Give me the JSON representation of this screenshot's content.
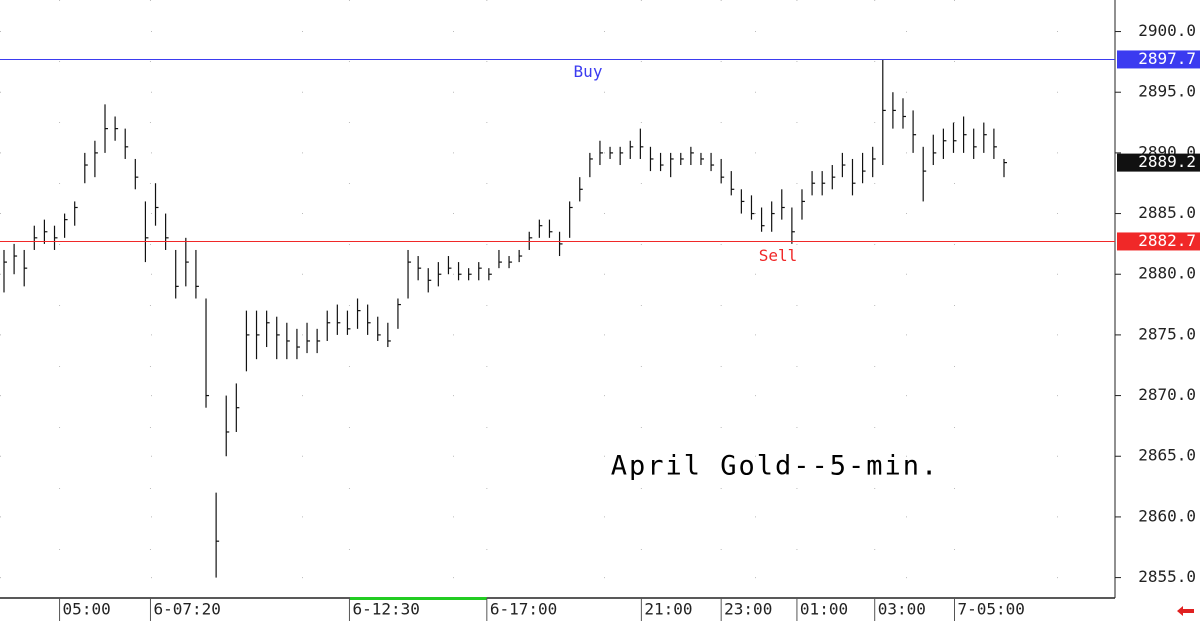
{
  "chart_data": {
    "type": "ohlc",
    "annotation": "April Gold--5-min.",
    "high": [
      2882,
      2882.5,
      2882,
      2884,
      2884.5,
      2884,
      2885,
      2886,
      2890,
      2891,
      2894,
      2893,
      2892,
      2889.5,
      2886,
      2887.5,
      2885,
      2882,
      2883,
      2882,
      2878,
      2862,
      2870,
      2871,
      2877,
      2877,
      2877,
      2876.5,
      2876,
      2875.5,
      2876,
      2875.5,
      2877,
      2877.5,
      2877,
      2878,
      2877.5,
      2876.5,
      2876,
      2878,
      2882,
      2881.5,
      2880.5,
      2881,
      2881.5,
      2881,
      2880.5,
      2881,
      2880.5,
      2882,
      2881.5,
      2882,
      2883.5,
      2884.5,
      2884.5,
      2883.5,
      2886,
      2888,
      2890,
      2891,
      2890.5,
      2890.5,
      2891,
      2892,
      2890.5,
      2890,
      2890,
      2890,
      2890.5,
      2890,
      2890,
      2889.5,
      2888.5,
      2887,
      2886.5,
      2885.5,
      2886,
      2887,
      2885.5,
      2887,
      2888.5,
      2888.5,
      2889,
      2890,
      2889.5,
      2890,
      2890.5,
      2897.7,
      2895,
      2894.5,
      2893.5,
      2890.5,
      2891.5,
      2892,
      2892.5,
      2893,
      2892,
      2892.5,
      2892,
      2889.5
    ],
    "low": [
      2878.5,
      2880,
      2879,
      2882,
      2882.5,
      2882,
      2883,
      2884,
      2887.5,
      2888,
      2890,
      2891,
      2889.5,
      2887,
      2881,
      2884,
      2882,
      2878,
      2879,
      2878,
      2869,
      2855,
      2865,
      2867,
      2872,
      2873,
      2874,
      2873,
      2873,
      2873,
      2873.5,
      2873.5,
      2874.5,
      2875,
      2875,
      2875.5,
      2875,
      2874.5,
      2874,
      2875.5,
      2878,
      2879.5,
      2878.5,
      2879,
      2880,
      2879.5,
      2879.5,
      2879.5,
      2879.5,
      2880.5,
      2880.5,
      2881,
      2882,
      2883,
      2883,
      2881.5,
      2883,
      2886,
      2888,
      2889,
      2889.5,
      2889,
      2889.5,
      2889.5,
      2888.5,
      2888.5,
      2888,
      2889,
      2889,
      2889,
      2888.5,
      2887.5,
      2886.5,
      2885,
      2884.5,
      2883.5,
      2883.5,
      2884.5,
      2882.5,
      2884.5,
      2886.5,
      2886.5,
      2887,
      2888,
      2886.5,
      2887.5,
      2888,
      2889,
      2892,
      2892,
      2890,
      2886,
      2889,
      2889.5,
      2890,
      2890,
      2889.5,
      2890,
      2889.5,
      2888
    ],
    "close": [
      2881,
      2881.5,
      2880.5,
      2883,
      2883.5,
      2883,
      2884.5,
      2885.5,
      2889,
      2890,
      2892,
      2892,
      2890.5,
      2888,
      2883,
      2885.5,
      2883,
      2879,
      2881,
      2879,
      2870,
      2858,
      2867,
      2869,
      2875,
      2875,
      2876,
      2875,
      2874.5,
      2874,
      2874.5,
      2874.5,
      2876,
      2876,
      2875.5,
      2877,
      2876,
      2875,
      2874.5,
      2877.5,
      2881,
      2880.5,
      2879.5,
      2880,
      2880.5,
      2880,
      2880,
      2880.5,
      2880,
      2881,
      2881,
      2881.5,
      2883,
      2884,
      2883.5,
      2882.5,
      2885.5,
      2887,
      2889.5,
      2890,
      2890,
      2890,
      2890.5,
      2890.5,
      2889.5,
      2889,
      2889.5,
      2889.5,
      2890,
      2889.5,
      2889,
      2888,
      2887,
      2886,
      2885,
      2884,
      2885,
      2885.5,
      2883.5,
      2886,
      2887.5,
      2887.5,
      2888,
      2889,
      2887.5,
      2888.5,
      2889.5,
      2893.5,
      2893.5,
      2893,
      2891.5,
      2888.5,
      2890,
      2891,
      2891,
      2891.5,
      2890.5,
      2891.5,
      2890.5,
      2889.2
    ],
    "ylim": [
      2853.4,
      2902.6
    ],
    "yticks": [
      {
        "value": 2855,
        "label": "2855.0"
      },
      {
        "value": 2860,
        "label": "2860.0"
      },
      {
        "value": 2865,
        "label": "2865.0"
      },
      {
        "value": 2870,
        "label": "2870.0"
      },
      {
        "value": 2875,
        "label": "2875.0"
      },
      {
        "value": 2880,
        "label": "2880.0"
      },
      {
        "value": 2885,
        "label": "2885.0"
      },
      {
        "value": 2890,
        "label": "2890.0"
      },
      {
        "value": 2895,
        "label": "2895.0"
      },
      {
        "value": 2900,
        "label": "2900.0"
      }
    ],
    "xticks": [
      {
        "value": 5.5,
        "label": "05:00"
      },
      {
        "value": 14.5,
        "label": "6-07:20"
      },
      {
        "value": 34.2,
        "label": "6-12:30"
      },
      {
        "value": 47.8,
        "label": "6-17:00"
      },
      {
        "value": 63.1,
        "label": "21:00"
      },
      {
        "value": 71,
        "label": "23:00"
      },
      {
        "value": 78.5,
        "label": "01:00"
      },
      {
        "value": 86.2,
        "label": "03:00"
      },
      {
        "value": 94.1,
        "label": "7-05:00"
      }
    ],
    "hlines": [
      {
        "value": 2897.7,
        "text": "Buy",
        "color": "#3b3bf0"
      },
      {
        "value": 2882.7,
        "text": "Sell",
        "color": "#f02828"
      }
    ],
    "color": "#111111",
    "grid": true
  }
}
